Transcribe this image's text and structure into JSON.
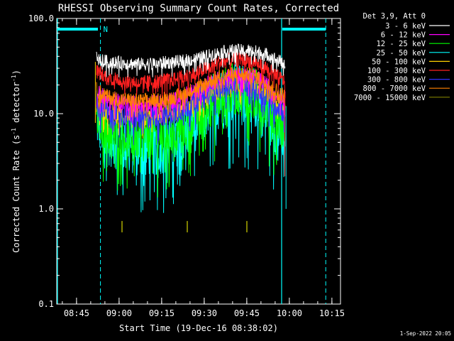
{
  "chart_data": {
    "type": "line",
    "title": "RHESSI Observing Summary Count Rates, Corrected",
    "xlabel": "Start Time (19-Dec-16 08:38:02)",
    "ylabel_main": "Corrected Count Rate (s",
    "ylabel_sup1": "-1",
    "ylabel_mid": " detector",
    "ylabel_sup2": "-1",
    "ylabel_end": ")",
    "y_scale": "log",
    "ylim": [
      0.1,
      100.0
    ],
    "x_unit": "minutes since 08:38:02",
    "xlim": [
      0,
      100
    ],
    "x_ticks": [
      {
        "label": "08:45",
        "x": 6.97
      },
      {
        "label": "09:00",
        "x": 21.97
      },
      {
        "label": "09:15",
        "x": 36.97
      },
      {
        "label": "09:30",
        "x": 51.97
      },
      {
        "label": "09:45",
        "x": 66.97
      },
      {
        "label": "10:00",
        "x": 81.97
      },
      {
        "label": "10:15",
        "x": 96.97
      }
    ],
    "y_ticks": [
      {
        "label": "100.0",
        "v": 100.0
      },
      {
        "label": "10.0",
        "v": 10.0
      },
      {
        "label": "1.0",
        "v": 1.0
      },
      {
        "label": "0.1",
        "v": 0.1
      }
    ],
    "legend_header": "Det 3,9, Att 0",
    "legend_position": "top-right outside",
    "series": [
      {
        "name": "3 - 6 keV",
        "color": "#ffffff",
        "x": [
          14,
          18,
          24,
          30,
          36,
          42,
          48,
          54,
          58,
          62,
          66,
          70,
          74,
          78,
          80.5
        ],
        "y": [
          38,
          35,
          34,
          33,
          34,
          35,
          37,
          41,
          44,
          46,
          46,
          45,
          42,
          36,
          34
        ],
        "noise": 0.07
      },
      {
        "name": "6 - 12 keV",
        "color": "#ff00ff",
        "x": [
          14,
          18,
          24,
          30,
          36,
          42,
          48,
          54,
          58,
          62,
          66,
          70,
          74,
          78,
          80.5
        ],
        "y": [
          17,
          14,
          13,
          12.5,
          13,
          14,
          17,
          21,
          24,
          25,
          25,
          24,
          20,
          16,
          14
        ],
        "noise": 0.09
      },
      {
        "name": "12 - 25 keV",
        "color": "#00ff00",
        "x": [
          14,
          18,
          24,
          30,
          36,
          42,
          48,
          54,
          58,
          62,
          66,
          70,
          74,
          78,
          80.5
        ],
        "y": [
          10,
          7.5,
          6.5,
          6,
          6.2,
          7,
          9.5,
          13.5,
          16,
          18,
          18,
          16,
          13,
          9.5,
          8
        ],
        "noise": 0.28
      },
      {
        "name": "25 - 50 keV",
        "color": "#00ffff",
        "x": [
          14,
          18,
          24,
          30,
          36,
          42,
          48,
          54,
          58,
          62,
          66,
          70,
          74,
          78,
          80.5
        ],
        "y": [
          9,
          6,
          5,
          4.5,
          4.8,
          5.5,
          8,
          12,
          15,
          16.5,
          16.5,
          14.5,
          11,
          7,
          5.5
        ],
        "noise": 0.33
      },
      {
        "name": "50 - 100 keV",
        "color": "#ffd000",
        "x": [
          14,
          18,
          24,
          30,
          36,
          42,
          48,
          54,
          58,
          62,
          66,
          70,
          74,
          78,
          80.5
        ],
        "y": [
          12,
          10,
          9.5,
          9,
          9.5,
          10.5,
          13,
          17,
          20,
          21,
          21,
          20,
          17,
          13,
          11
        ],
        "noise": 0.1
      },
      {
        "name": "100 - 300 keV",
        "color": "#ff2020",
        "x": [
          14,
          18,
          24,
          30,
          36,
          42,
          48,
          54,
          58,
          62,
          66,
          70,
          74,
          78,
          80.5
        ],
        "y": [
          28,
          24,
          22,
          21,
          22,
          23,
          26,
          31,
          35,
          37,
          37,
          35,
          30,
          24,
          22
        ],
        "noise": 0.08
      },
      {
        "name": "300 - 800 keV",
        "color": "#3030ff",
        "x": [
          14,
          18,
          24,
          30,
          36,
          42,
          48,
          54,
          58,
          62,
          66,
          70,
          74,
          78,
          80.5
        ],
        "y": [
          13,
          10.5,
          9.5,
          9,
          9.5,
          10.5,
          13,
          17,
          20,
          21,
          21,
          19,
          15.5,
          12,
          10.5
        ],
        "noise": 0.13
      },
      {
        "name": "800 - 7000 keV",
        "color": "#ff8000",
        "x": [
          14,
          18,
          24,
          30,
          36,
          42,
          48,
          54,
          58,
          62,
          66,
          70,
          74,
          78,
          80.5
        ],
        "y": [
          18,
          15,
          14,
          13.5,
          14,
          15,
          18,
          22,
          25,
          26,
          26,
          25,
          21,
          17,
          15
        ],
        "noise": 0.08
      },
      {
        "name": "7000 - 15000 keV",
        "color": "#808000",
        "x": [
          23,
          46,
          67
        ],
        "y": [
          0.65,
          0.65,
          0.65
        ],
        "noise": 0.0
      }
    ],
    "annotations": {
      "n_marker": "N",
      "cyan_vertical_solid": [
        0,
        79
      ],
      "cyan_vertical_dashed": [
        15.4,
        94.8
      ],
      "cyan_bars": [
        [
          0,
          14.5
        ],
        [
          79.5,
          94.8
        ]
      ]
    }
  },
  "footer": {
    "timestamp": "1-Sep-2022 20:05"
  }
}
